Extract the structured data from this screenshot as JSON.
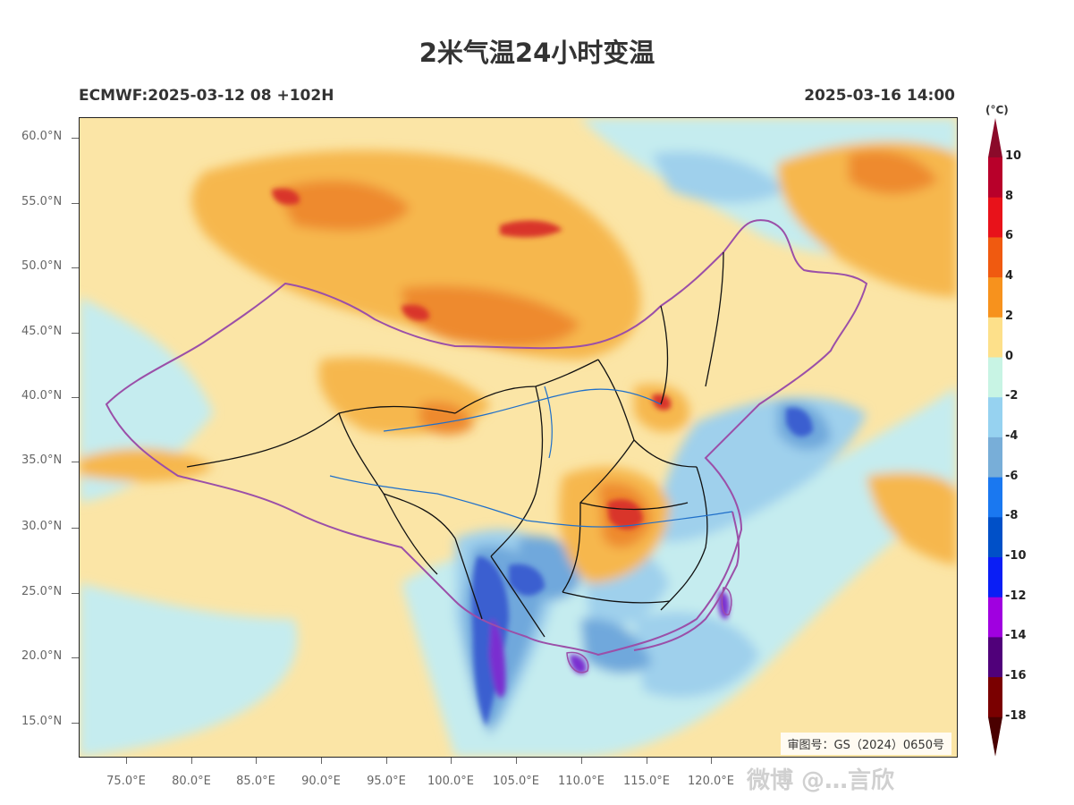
{
  "title": "2米气温24小时变温",
  "subtitle_left": "ECMWF:2025-03-12 08 +102H",
  "subtitle_right": "2025-03-16 14:00",
  "y_ticks": [
    "60.0°N",
    "55.0°N",
    "50.0°N",
    "45.0°N",
    "40.0°N",
    "35.0°N",
    "30.0°N",
    "25.0°N",
    "20.0°N",
    "15.0°N"
  ],
  "x_ticks": [
    "75.0°E",
    "80.0°E",
    "85.0°E",
    "90.0°E",
    "95.0°E",
    "100.0°E",
    "105.0°E",
    "110.0°E",
    "115.0°E",
    "120.0°E"
  ],
  "approval_number": "审图号：GS（2024）0650号",
  "colorbar": {
    "unit": "(°C)",
    "labels": [
      "10",
      "8",
      "6",
      "4",
      "2",
      "0",
      "-2",
      "-4",
      "-6",
      "-8",
      "-10",
      "-12",
      "-14",
      "-16",
      "-18"
    ],
    "colors": [
      "#8b0a2a",
      "#b8002a",
      "#e8121a",
      "#f05a10",
      "#f7921d",
      "#fde08a",
      "#c8f4e4",
      "#96d2f0",
      "#78aed8",
      "#1a78f0",
      "#0050c8",
      "#0a1ef5",
      "#a000e0",
      "#50007a",
      "#7a0000",
      "#4a0000"
    ]
  },
  "watermark": "微博 @…言欣",
  "map_colors": {
    "warm_light": "#fbe5a6",
    "warm_mid": "#f6b74e",
    "warm_strong": "#ee8a2e",
    "hot": "#d9342a",
    "cool_light": "#c5ecef",
    "cool_mid": "#9fd0ec",
    "cool_strong": "#6fa8dc",
    "cold": "#3a5fd0",
    "very_cold": "#7a2ed0",
    "border": "#9b4fa8",
    "province": "#111111",
    "river": "#1f6fc9"
  }
}
